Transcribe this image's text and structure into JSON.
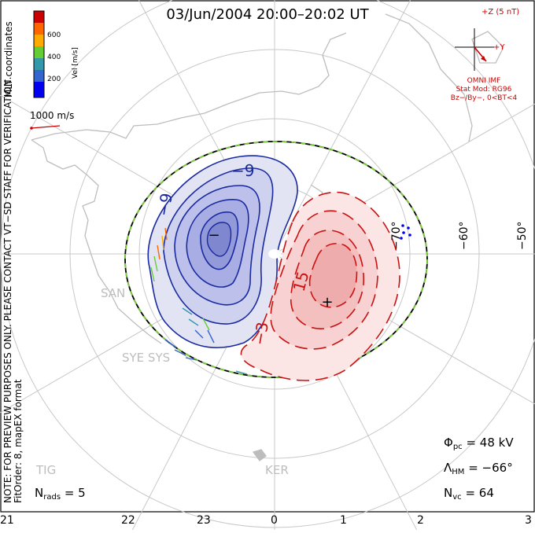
{
  "title": "03/Jun/2004  20:00–20:02  UT",
  "coordinate_label": "MLT coordinates",
  "colorbar": {
    "axis_label": "Vel [m/s]",
    "ticks": [
      "600",
      "400",
      "200"
    ],
    "colors": [
      "#cc0000",
      "#ff6600",
      "#ffaa00",
      "#66cc33",
      "#3399aa",
      "#3366cc",
      "#0000ee"
    ]
  },
  "velocity_scale": "1000 m/s",
  "imf": {
    "z_label": "+Z (5 nT)",
    "y_label": "+Y",
    "line1": "OMNI IMF",
    "line2": "Stat Mod: RG96",
    "line3": "Bz−/By−, 0<BT<4",
    "color": "#cc0000"
  },
  "latitude_labels": [
    "−70°",
    "−60°",
    "−50°"
  ],
  "mlt_labels": [
    "21",
    "22",
    "23",
    "0",
    "1",
    "2",
    "3"
  ],
  "contour_labels": {
    "neg_outer": "−9",
    "neg_side": "−9",
    "pos_mid": "15",
    "pos_low": "−3"
  },
  "markers": {
    "min": "−",
    "max": "+"
  },
  "stations": [
    "SAN",
    "SYE SYS",
    "TIG",
    "KER"
  ],
  "stats": {
    "phi_symbol": "Φ",
    "phi_sub": "pc",
    "phi_value": "=  48 kV",
    "lambda_symbol": "Λ",
    "lambda_sub": "HM",
    "lambda_value": "=  −66°",
    "nvc_symbol": "N",
    "nvc_sub": "vc",
    "nvc_value": "=  64",
    "nrads_symbol": "N",
    "nrads_sub": "rads",
    "nrads_value": "=  5"
  },
  "note_line1": "NOTE: FOR PREVIEW PURPOSES ONLY. PLEASE CONTACT VT−SD STAFF FOR VERIFICATION.",
  "note_line2": "FitOrder: 8,  mapEX format",
  "colors": {
    "negative_fill": "#b8bce8",
    "negative_line": "#1a2aa0",
    "positive_fill": "#f3c2c2",
    "positive_line": "#cc1111",
    "heppner_boundary": "#7acc3a",
    "grid": "#c8c8c8",
    "coast": "#bdbdbd"
  }
}
